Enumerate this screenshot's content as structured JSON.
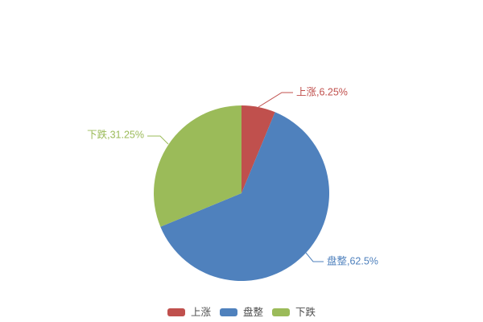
{
  "chart_data": {
    "type": "pie",
    "title": "",
    "categories": [
      "上涨",
      "盘整",
      "下跌"
    ],
    "values": [
      6.25,
      62.5,
      31.25
    ],
    "unit": "%",
    "colors": [
      "#c0504d",
      "#4f81bd",
      "#9bbb59"
    ],
    "data_labels": [
      "上涨,6.25%",
      "盘整,62.5%",
      "下跌,31.25%"
    ],
    "start_angle_deg": 0,
    "direction": "clockwise",
    "legend_position": "bottom",
    "background": "#ffffff",
    "legend_text_color": "#4d4d4d"
  }
}
